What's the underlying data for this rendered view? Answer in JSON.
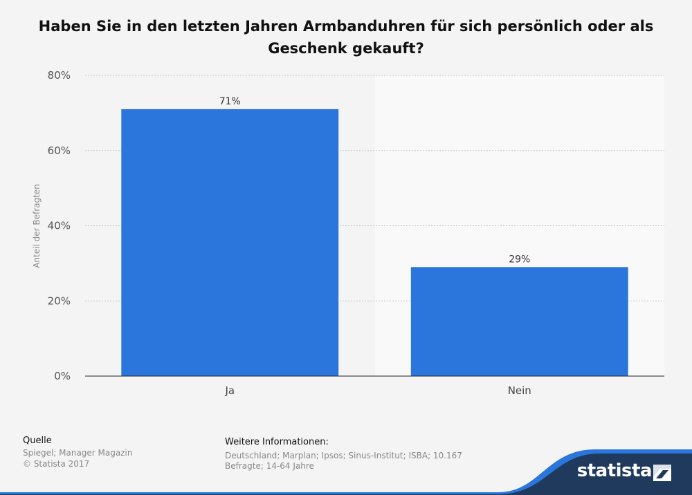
{
  "chart_data": {
    "type": "bar",
    "title": "Haben Sie in den letzten Jahren Armbanduhren für sich persönlich oder als Geschenk gekauft?",
    "categories": [
      "Ja",
      "Nein"
    ],
    "values": [
      71,
      29
    ],
    "value_labels": [
      "71%",
      "29%"
    ],
    "ylabel": "Anteil der Befragten",
    "xlabel": "",
    "ylim": [
      0,
      80
    ],
    "y_ticks": [
      0,
      20,
      40,
      60,
      80
    ],
    "y_tick_labels": [
      "0%",
      "20%",
      "40%",
      "60%",
      "80%"
    ],
    "grid": true,
    "bar_color": "#2a76dd"
  },
  "footer": {
    "source_label": "Quelle",
    "source_text": "Spiegel; Manager Magazin",
    "copyright": "© Statista 2017",
    "info_label": "Weitere Informationen:",
    "info_text_line1": "Deutschland; Marplan; Ipsos; Sinus-Institut; ISBA; 10.167",
    "info_text_line2": "Befragte; 14-64 Jahre"
  },
  "brand": {
    "name": "statista",
    "color": "#1f3a5c",
    "accent": "#2a76dd"
  }
}
